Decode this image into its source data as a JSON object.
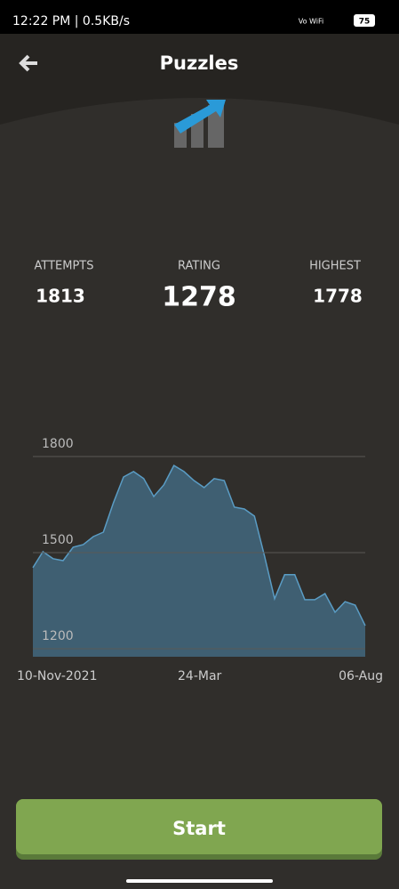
{
  "status_bar": {
    "time": "12:22 PM | 0.5KB/s",
    "network": "Vo WiFi",
    "battery": "75"
  },
  "header": {
    "title": "Puzzles"
  },
  "stats": [
    {
      "label": "ATTEMPTS",
      "value": "1813"
    },
    {
      "label": "RATING",
      "value": "1278"
    },
    {
      "label": "HIGHEST",
      "value": "1778"
    }
  ],
  "chart_data": {
    "type": "area",
    "categories": [
      "10-Nov-2021",
      null,
      null,
      null,
      null,
      null,
      null,
      null,
      null,
      null,
      null,
      null,
      null,
      null,
      null,
      null,
      null,
      "24-Mar",
      null,
      null,
      null,
      null,
      null,
      null,
      null,
      null,
      null,
      null,
      null,
      null,
      null,
      null,
      null,
      "06-Aug"
    ],
    "values": [
      1453,
      1503,
      1481,
      1475,
      1517,
      1525,
      1550,
      1564,
      1656,
      1736,
      1753,
      1731,
      1675,
      1711,
      1772,
      1753,
      1725,
      1703,
      1731,
      1725,
      1642,
      1636,
      1614,
      1489,
      1356,
      1431,
      1431,
      1353,
      1353,
      1372,
      1314,
      1347,
      1336,
      1272
    ],
    "color": "#5a9cc4",
    "ylim": [
      1175,
      1875
    ],
    "yticks": [
      1200,
      1500,
      1800
    ],
    "grid": true
  },
  "button": {
    "label": "Start"
  }
}
